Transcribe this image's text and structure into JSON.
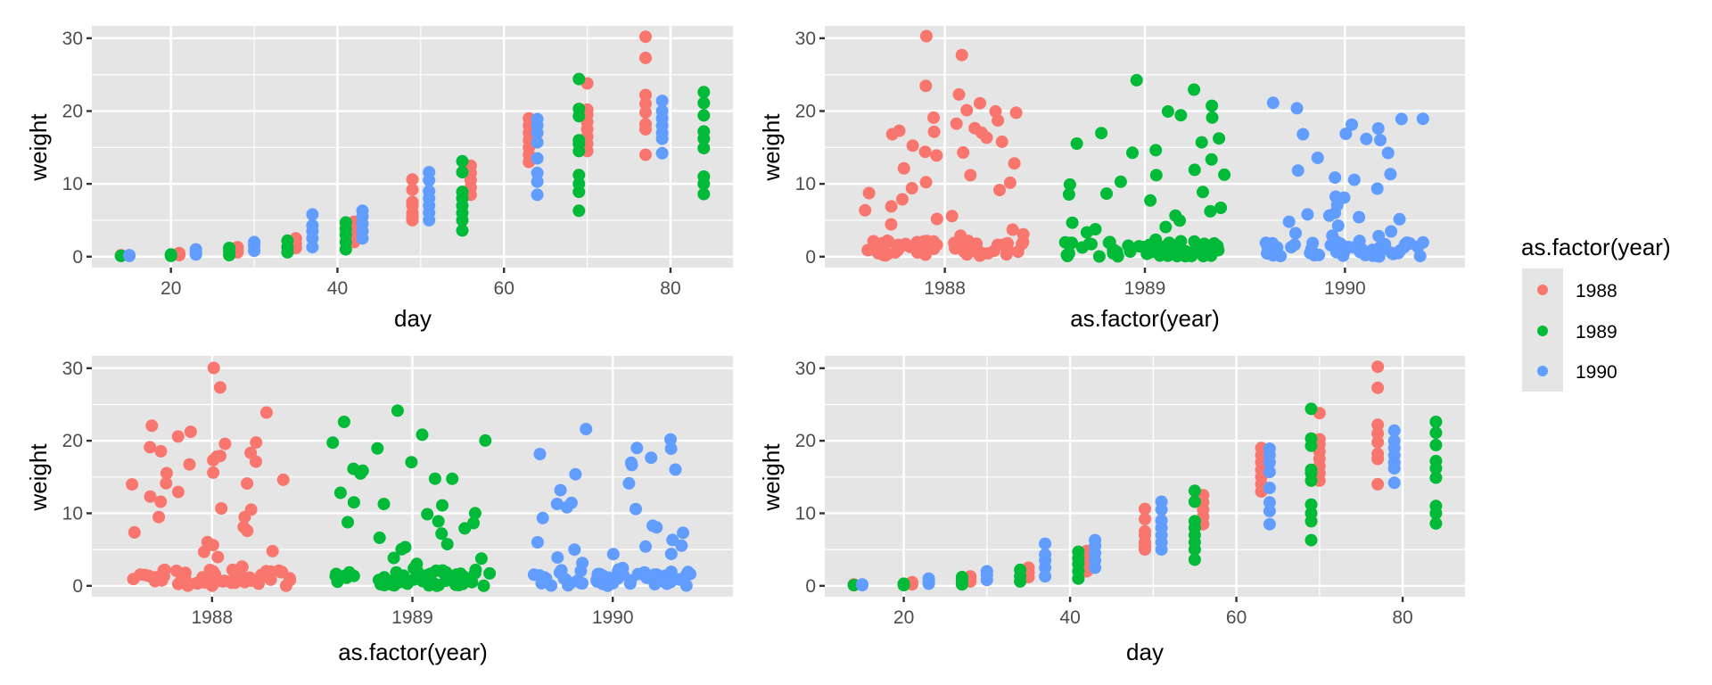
{
  "colors": {
    "panel_bg": "#e5e5e5",
    "grid_major": "#ffffff",
    "tick": "#333333",
    "1988": "#F8766D",
    "1989": "#00BA38",
    "1990": "#619CFF"
  },
  "legend": {
    "title": "as.factor(year)",
    "placement": "right",
    "entries": [
      {
        "label": "1988",
        "color": "#F8766D"
      },
      {
        "label": "1989",
        "color": "#00BA38"
      },
      {
        "label": "1990",
        "color": "#619CFF"
      }
    ]
  },
  "chart_data": [
    {
      "id": "day-plot-top",
      "type": "scatter",
      "xlabel": "day",
      "ylabel": "weight",
      "x_ticks": [
        "20",
        "40",
        "60",
        "80"
      ],
      "y_ticks": [
        "0",
        "10",
        "20",
        "30"
      ],
      "xlim": [
        10.5,
        87.5
      ],
      "ylim": [
        -1.5,
        31.7
      ],
      "grid": true
    },
    {
      "id": "jitter-plot-top",
      "type": "scatter",
      "xlabel": "as.factor(year)",
      "ylabel": "weight",
      "x_ticks": [
        "1988",
        "1989",
        "1990"
      ],
      "y_ticks": [
        "0",
        "10",
        "20",
        "30"
      ],
      "xlim": [
        0.4,
        3.6
      ],
      "ylim": [
        -1.5,
        31.7
      ],
      "grid": true
    },
    {
      "id": "jitter-plot-bottom",
      "type": "scatter",
      "xlabel": "as.factor(year)",
      "ylabel": "weight",
      "x_ticks": [
        "1988",
        "1989",
        "1990"
      ],
      "y_ticks": [
        "0",
        "10",
        "20",
        "30"
      ],
      "xlim": [
        0.4,
        3.6
      ],
      "ylim": [
        -1.5,
        31.7
      ],
      "grid": true
    },
    {
      "id": "day-plot-bottom",
      "type": "scatter",
      "xlabel": "day",
      "ylabel": "weight",
      "x_ticks": [
        "20",
        "40",
        "60",
        "80"
      ],
      "y_ticks": [
        "0",
        "10",
        "20",
        "30"
      ],
      "xlim": [
        10.5,
        87.5
      ],
      "ylim": [
        -1.5,
        31.7
      ],
      "grid": true
    }
  ],
  "series": [
    {
      "name": "1988",
      "points": [
        {
          "day": 14,
          "weights": [
            0.1,
            0.2
          ]
        },
        {
          "day": 21,
          "weights": [
            0.2,
            0.5
          ]
        },
        {
          "day": 28,
          "weights": [
            0.6,
            1.0,
            1.3
          ]
        },
        {
          "day": 35,
          "weights": [
            1.2,
            1.8,
            2.5
          ]
        },
        {
          "day": 42,
          "weights": [
            2.0,
            3.0,
            4.0,
            4.8
          ]
        },
        {
          "day": 49,
          "weights": [
            5.0,
            5.5,
            6.0,
            7.0,
            7.5,
            9.2,
            10.6
          ]
        },
        {
          "day": 56,
          "weights": [
            8.5,
            9.5,
            10.5,
            11.5,
            12.5
          ]
        },
        {
          "day": 63,
          "weights": [
            13.0,
            14.0,
            15.0,
            16.0,
            17.0,
            18.0,
            19.0
          ]
        },
        {
          "day": 70,
          "weights": [
            14.5,
            15.5,
            16.5,
            17.5,
            18.5,
            19.5,
            20.2,
            23.8
          ]
        },
        {
          "day": 77,
          "weights": [
            14.0,
            17.5,
            18.2,
            19.8,
            21.0,
            22.2,
            27.3,
            30.2
          ]
        }
      ]
    },
    {
      "name": "1989",
      "points": [
        {
          "day": 14,
          "weights": [
            0.1
          ]
        },
        {
          "day": 20,
          "weights": [
            0.1,
            0.3
          ]
        },
        {
          "day": 27,
          "weights": [
            0.2,
            0.7,
            1.2
          ]
        },
        {
          "day": 34,
          "weights": [
            0.6,
            1.3,
            2.2
          ]
        },
        {
          "day": 41,
          "weights": [
            1.0,
            2.0,
            3.0,
            3.8,
            4.7
          ]
        },
        {
          "day": 55,
          "weights": [
            3.6,
            5.0,
            6.0,
            7.0,
            8.0,
            8.9,
            11.6,
            13.1
          ]
        },
        {
          "day": 69,
          "weights": [
            6.3,
            8.9,
            10.0,
            11.2,
            14.5,
            15.5,
            16.0,
            19.3,
            20.3,
            24.4
          ]
        },
        {
          "day": 84,
          "weights": [
            8.6,
            10.0,
            11.0,
            14.9,
            16.2,
            17.2,
            19.4,
            21.1,
            22.6
          ]
        }
      ]
    },
    {
      "name": "1990",
      "points": [
        {
          "day": 15,
          "weights": [
            0.1,
            0.2
          ]
        },
        {
          "day": 23,
          "weights": [
            0.3,
            0.6,
            1.0
          ]
        },
        {
          "day": 30,
          "weights": [
            0.8,
            1.5,
            2.0
          ]
        },
        {
          "day": 37,
          "weights": [
            1.3,
            2.5,
            3.5,
            4.3,
            5.8
          ]
        },
        {
          "day": 43,
          "weights": [
            2.5,
            3.5,
            4.5,
            5.5,
            6.3
          ]
        },
        {
          "day": 51,
          "weights": [
            5.0,
            6.0,
            7.0,
            8.0,
            9.0,
            10.5,
            11.6
          ]
        },
        {
          "day": 64,
          "weights": [
            8.5,
            10.3,
            11.5,
            13.5,
            15.7,
            17.0,
            18.0,
            18.9
          ]
        },
        {
          "day": 79,
          "weights": [
            14.2,
            16.2,
            17.0,
            18.0,
            19.0,
            20.0,
            21.4
          ]
        }
      ]
    }
  ]
}
